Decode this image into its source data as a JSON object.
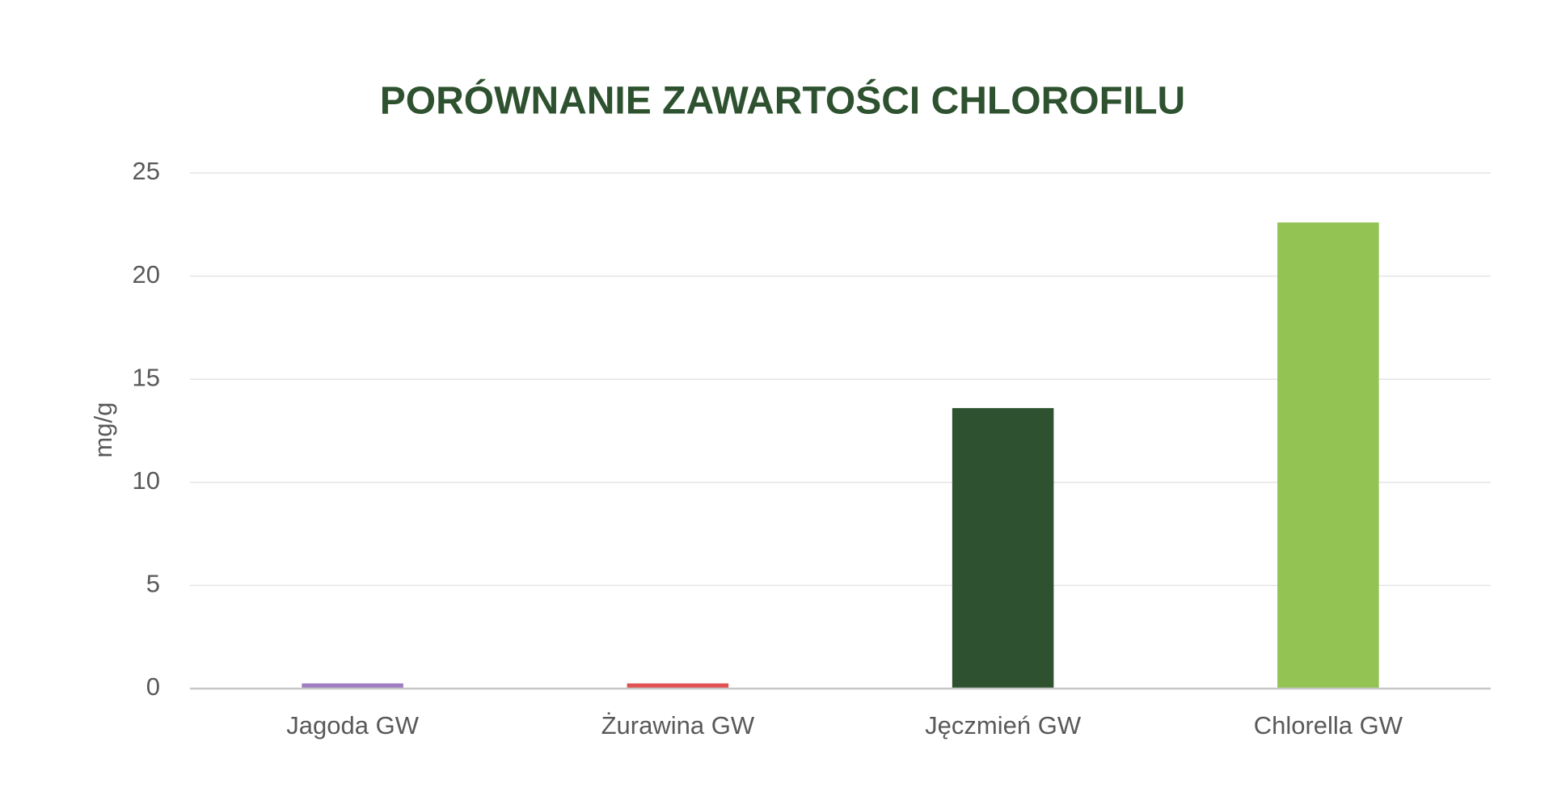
{
  "chart_data": {
    "type": "bar",
    "title": "PORÓWNANIE ZAWARTOŚCI CHLOROFILU",
    "y_label": "mg/g",
    "categories": [
      "Jagoda GW",
      "Żurawina GW",
      "Jęczmień GW",
      "Chlorella GW"
    ],
    "values": [
      0.25,
      0.25,
      13.6,
      22.6
    ],
    "colors": [
      "#a07cc0",
      "#e05252",
      "#2e5230",
      "#92c353"
    ],
    "ylim": [
      0,
      25
    ],
    "yticks": [
      0,
      5,
      10,
      15,
      20,
      25
    ],
    "grid": true
  }
}
